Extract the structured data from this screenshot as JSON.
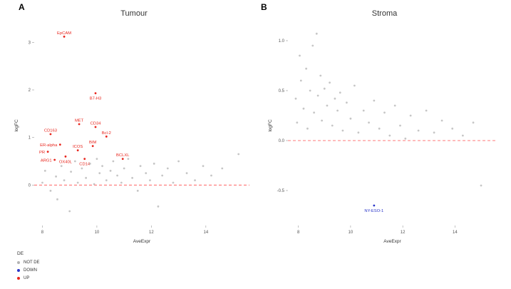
{
  "panels": [
    {
      "letter": "A",
      "title": "Tumour"
    },
    {
      "letter": "B",
      "title": "Stroma"
    }
  ],
  "legend": {
    "title": "DE",
    "items": [
      {
        "label": "NOT DE",
        "color": "#b3b3b3"
      },
      {
        "label": "DOWN",
        "color": "#2a35c8"
      },
      {
        "label": "UP",
        "color": "#e8251c"
      }
    ]
  },
  "chart_data": [
    {
      "type": "scatter",
      "panel": "A",
      "title": "Tumour",
      "xlabel": "AveExpr",
      "ylabel": "logFC",
      "xlim": [
        7.7,
        15.6
      ],
      "ylim": [
        -0.85,
        3.35
      ],
      "xticks": [
        8,
        10,
        12,
        14
      ],
      "yticks": [
        0,
        1,
        2,
        3
      ],
      "ytick_labels": [
        "0",
        "1",
        "2",
        "3"
      ],
      "hline": 0,
      "hline_color": "#ff4d4d",
      "series": [
        {
          "name": "UP",
          "color": "#e8251c",
          "points": [
            {
              "label": "EpCAM",
              "x": 8.8,
              "y": 3.12,
              "label_pos": "above"
            },
            {
              "label": "B7-H3",
              "x": 9.95,
              "y": 1.93,
              "label_pos": "below"
            },
            {
              "label": "MET",
              "x": 9.35,
              "y": 1.28,
              "label_pos": "above"
            },
            {
              "label": "CD34",
              "x": 9.95,
              "y": 1.22,
              "label_pos": "above"
            },
            {
              "label": "CD163",
              "x": 8.3,
              "y": 1.07,
              "label_pos": "above"
            },
            {
              "label": "Bcl-2",
              "x": 10.35,
              "y": 1.02,
              "label_pos": "above"
            },
            {
              "label": "ER-alpha",
              "x": 8.65,
              "y": 0.85,
              "label_pos": "left"
            },
            {
              "label": "BIM",
              "x": 9.85,
              "y": 0.82,
              "label_pos": "above"
            },
            {
              "label": "PR",
              "x": 8.2,
              "y": 0.7,
              "label_pos": "left"
            },
            {
              "label": "ICOS",
              "x": 9.3,
              "y": 0.73,
              "label_pos": "above"
            },
            {
              "label": "OX40L",
              "x": 8.85,
              "y": 0.6,
              "label_pos": "below"
            },
            {
              "label": "ARG1",
              "x": 8.45,
              "y": 0.53,
              "label_pos": "left"
            },
            {
              "label": "CD14",
              "x": 9.55,
              "y": 0.55,
              "label_pos": "below"
            },
            {
              "label": "BCLXL",
              "x": 10.95,
              "y": 0.55,
              "label_pos": "above"
            }
          ]
        },
        {
          "name": "NOT DE",
          "color": "#b3b3b3",
          "points": [
            [
              8.0,
              0.05
            ],
            [
              8.1,
              0.3
            ],
            [
              8.3,
              -0.12
            ],
            [
              8.5,
              0.18
            ],
            [
              8.55,
              -0.3
            ],
            [
              8.7,
              0.4
            ],
            [
              8.8,
              0.1
            ],
            [
              9.0,
              -0.55
            ],
            [
              9.05,
              0.28
            ],
            [
              9.2,
              0.5
            ],
            [
              9.3,
              0.05
            ],
            [
              9.45,
              0.35
            ],
            [
              9.6,
              0.15
            ],
            [
              9.75,
              0.45
            ],
            [
              9.9,
              0.02
            ],
            [
              10.0,
              0.55
            ],
            [
              10.1,
              0.25
            ],
            [
              10.2,
              0.4
            ],
            [
              10.35,
              0.1
            ],
            [
              10.5,
              0.3
            ],
            [
              10.6,
              0.5
            ],
            [
              10.75,
              0.2
            ],
            [
              10.9,
              0.05
            ],
            [
              11.0,
              0.35
            ],
            [
              11.15,
              0.55
            ],
            [
              11.3,
              0.15
            ],
            [
              11.5,
              -0.12
            ],
            [
              11.6,
              0.4
            ],
            [
              11.8,
              0.25
            ],
            [
              11.95,
              0.1
            ],
            [
              12.1,
              0.45
            ],
            [
              12.25,
              -0.45
            ],
            [
              12.4,
              0.2
            ],
            [
              12.6,
              0.35
            ],
            [
              12.8,
              0.05
            ],
            [
              13.0,
              0.5
            ],
            [
              13.3,
              0.25
            ],
            [
              13.6,
              0.1
            ],
            [
              13.9,
              0.4
            ],
            [
              14.2,
              0.2
            ],
            [
              14.6,
              0.35
            ],
            [
              15.2,
              0.65
            ]
          ]
        }
      ]
    },
    {
      "type": "scatter",
      "panel": "B",
      "title": "Stroma",
      "xlabel": "AveExpr",
      "ylabel": "logFC",
      "xlim": [
        7.6,
        15.6
      ],
      "ylim": [
        -0.85,
        1.15
      ],
      "xticks": [
        8,
        10,
        12,
        14
      ],
      "yticks": [
        -0.5,
        0.0,
        0.5,
        1.0
      ],
      "ytick_labels": [
        "-0.5",
        "0.0",
        "0.5",
        "1.0"
      ],
      "hline": 0,
      "hline_color": "#ff4d4d",
      "series": [
        {
          "name": "DOWN",
          "color": "#2a35c8",
          "points": [
            {
              "label": "NY-ESO-1",
              "x": 10.9,
              "y": -0.65,
              "label_pos": "below"
            }
          ]
        },
        {
          "name": "NOT DE",
          "color": "#b3b3b3",
          "points": [
            [
              7.9,
              0.42
            ],
            [
              7.95,
              0.18
            ],
            [
              8.05,
              0.85
            ],
            [
              8.1,
              0.6
            ],
            [
              8.2,
              0.32
            ],
            [
              8.3,
              0.72
            ],
            [
              8.35,
              0.12
            ],
            [
              8.45,
              0.5
            ],
            [
              8.55,
              0.95
            ],
            [
              8.6,
              0.28
            ],
            [
              8.7,
              1.07
            ],
            [
              8.75,
              0.45
            ],
            [
              8.85,
              0.65
            ],
            [
              8.9,
              0.2
            ],
            [
              9.0,
              0.52
            ],
            [
              9.1,
              0.35
            ],
            [
              9.2,
              0.58
            ],
            [
              9.3,
              0.15
            ],
            [
              9.4,
              0.42
            ],
            [
              9.5,
              0.3
            ],
            [
              9.6,
              0.48
            ],
            [
              9.7,
              0.1
            ],
            [
              9.85,
              0.38
            ],
            [
              10.0,
              0.22
            ],
            [
              10.15,
              0.55
            ],
            [
              10.3,
              0.08
            ],
            [
              10.5,
              0.3
            ],
            [
              10.7,
              0.18
            ],
            [
              10.9,
              0.4
            ],
            [
              11.1,
              0.12
            ],
            [
              11.3,
              0.28
            ],
            [
              11.5,
              0.05
            ],
            [
              11.7,
              0.35
            ],
            [
              11.9,
              0.15
            ],
            [
              12.1,
              0.02
            ],
            [
              12.3,
              0.25
            ],
            [
              12.6,
              0.1
            ],
            [
              12.9,
              0.3
            ],
            [
              13.2,
              0.08
            ],
            [
              13.5,
              0.2
            ],
            [
              13.9,
              0.12
            ],
            [
              14.3,
              0.05
            ],
            [
              14.7,
              0.18
            ],
            [
              15.0,
              -0.45
            ]
          ]
        }
      ]
    }
  ]
}
